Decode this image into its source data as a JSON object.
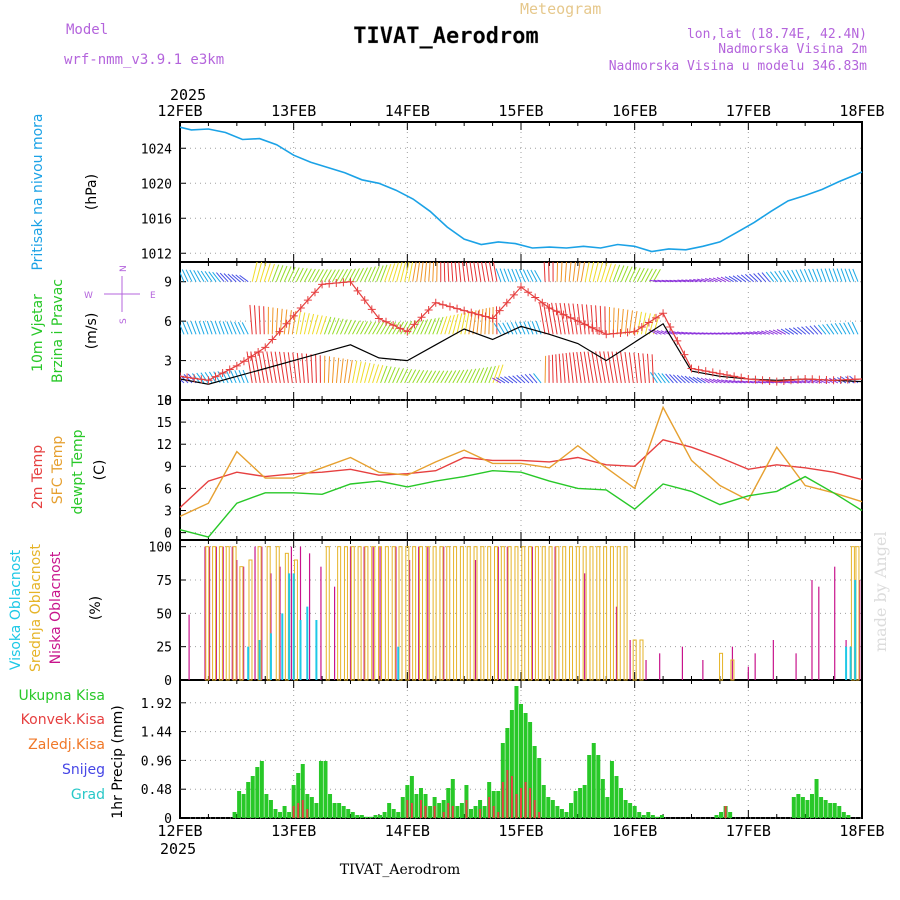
{
  "header": {
    "model_label": "Model",
    "model_name": "wrf-nmm_v3.9.1 e3km",
    "meteogram_label": "Meteogram",
    "station": "TIVAT_Aerodrom",
    "lonlat": "lon,lat (18.74E, 42.4N)",
    "elevation": "Nadmorska Visina 2m",
    "model_elevation": "Nadmorska Visina u modelu 346.83m",
    "footer_station": "TIVAT_Aerodrom",
    "watermark": "made by Angel"
  },
  "colors": {
    "pressure": "#1ba2e6",
    "temp2m": "#e64040",
    "sfc": "#e6a030",
    "dewpt": "#28c828",
    "high_cloud": "#1ec8e6",
    "mid_cloud": "#e6b428",
    "low_cloud": "#c8148c",
    "total_precip": "#28c828",
    "conv_precip": "#e64040",
    "frozen": "#f07828",
    "snow": "#4646e6",
    "hail": "#28c8c8",
    "wind_dir": "#b464dc"
  },
  "time_axis": {
    "year": "2025",
    "ticks": [
      "12FEB",
      "13FEB",
      "14FEB",
      "15FEB",
      "16FEB",
      "17FEB",
      "18FEB"
    ]
  },
  "chart_data": [
    {
      "type": "line",
      "id": "pressure",
      "title": "Pritisak na nivou mora",
      "ylabel": "(hPa)",
      "ylim": [
        1011,
        1027
      ],
      "yticks": [
        "1012",
        "1016",
        "1020",
        "1024"
      ],
      "x": [
        0,
        0.1,
        0.25,
        0.4,
        0.55,
        0.7,
        0.85,
        1.0,
        1.15,
        1.3,
        1.45,
        1.6,
        1.75,
        1.9,
        2.05,
        2.2,
        2.35,
        2.5,
        2.65,
        2.8,
        2.95,
        3.1,
        3.25,
        3.4,
        3.55,
        3.7,
        3.85,
        4.0,
        4.15,
        4.3,
        4.45,
        4.6,
        4.75,
        4.9,
        5.05,
        5.2,
        5.35,
        5.5,
        5.65,
        5.8,
        5.95,
        6.0
      ],
      "series": [
        {
          "name": "Pressure",
          "values": [
            1026.4,
            1026.1,
            1026.2,
            1025.8,
            1025.0,
            1025.1,
            1024.4,
            1023.2,
            1022.4,
            1021.8,
            1021.2,
            1020.4,
            1020.0,
            1019.2,
            1018.2,
            1016.8,
            1015.0,
            1013.6,
            1013.0,
            1013.3,
            1013.1,
            1012.6,
            1012.7,
            1012.6,
            1012.8,
            1012.6,
            1013.0,
            1012.8,
            1012.2,
            1012.5,
            1012.4,
            1012.8,
            1013.3,
            1014.4,
            1015.5,
            1016.8,
            1018.0,
            1018.6,
            1019.3,
            1020.2,
            1021.0,
            1021.3
          ]
        }
      ]
    },
    {
      "type": "line",
      "id": "wind",
      "title": "10m Vjetar",
      "title2": "Brzina i Pravac",
      "ylabel": "(m/s)",
      "ylim": [
        0,
        10.5
      ],
      "yticks": [
        "0",
        "3",
        "6",
        "9"
      ],
      "compass": {
        "n": "N",
        "s": "S",
        "e": "E",
        "w": "W"
      },
      "x": [
        0,
        0.25,
        0.5,
        0.75,
        1.0,
        1.25,
        1.5,
        1.75,
        2.0,
        2.25,
        2.5,
        2.75,
        3.0,
        3.25,
        3.5,
        3.75,
        4.0,
        4.25,
        4.5,
        4.75,
        5.0,
        5.25,
        5.5,
        5.75,
        6.0
      ],
      "series": [
        {
          "name": "Speed (mean)",
          "values": [
            1.6,
            1.2,
            1.8,
            2.4,
            3.0,
            3.6,
            4.2,
            3.2,
            3.0,
            4.2,
            5.4,
            4.6,
            5.6,
            5.0,
            4.3,
            3.0,
            4.4,
            5.8,
            2.2,
            1.8,
            1.6,
            1.5,
            1.6,
            1.5,
            1.4
          ]
        },
        {
          "name": "Gust",
          "values": [
            1.8,
            1.5,
            2.6,
            4.0,
            6.4,
            8.8,
            9.0,
            6.2,
            5.2,
            7.4,
            6.8,
            6.2,
            8.6,
            7.0,
            6.0,
            5.0,
            5.2,
            6.6,
            2.4,
            2.0,
            1.6,
            1.4,
            1.6,
            1.5,
            1.6
          ]
        }
      ]
    },
    {
      "type": "line",
      "id": "temperature",
      "title": "2m Temp",
      "title2": "SFC Temp",
      "title3": "dewpt Temp",
      "ylabel": "(C)",
      "ylim": [
        -1,
        18
      ],
      "yticks": [
        "0",
        "3",
        "6",
        "9",
        "12",
        "15",
        "18"
      ],
      "x": [
        0,
        0.25,
        0.5,
        0.75,
        1.0,
        1.25,
        1.5,
        1.75,
        2.0,
        2.25,
        2.5,
        2.75,
        3.0,
        3.25,
        3.5,
        3.75,
        4.0,
        4.25,
        4.5,
        4.75,
        5.0,
        5.25,
        5.5,
        5.75,
        6.0
      ],
      "series": [
        {
          "name": "2m Temp",
          "values": [
            3.4,
            7.0,
            8.2,
            7.6,
            8.0,
            8.2,
            8.6,
            7.8,
            8.0,
            8.4,
            10.2,
            9.8,
            9.8,
            9.6,
            10.2,
            9.2,
            9.0,
            12.6,
            11.6,
            10.2,
            8.6,
            9.2,
            8.8,
            8.2,
            7.2
          ]
        },
        {
          "name": "SFC Temp",
          "values": [
            2.2,
            4.0,
            11.0,
            7.4,
            7.4,
            8.8,
            10.2,
            8.2,
            7.8,
            9.6,
            11.2,
            9.4,
            9.4,
            8.8,
            11.8,
            8.8,
            6.0,
            17.0,
            9.8,
            6.4,
            4.4,
            11.6,
            6.4,
            5.4,
            4.2
          ]
        },
        {
          "name": "Dewpt Temp",
          "values": [
            0.4,
            -0.6,
            4.0,
            5.4,
            5.4,
            5.2,
            6.6,
            7.0,
            6.2,
            7.0,
            7.6,
            8.4,
            8.2,
            7.0,
            6.0,
            5.8,
            3.2,
            6.6,
            5.6,
            3.8,
            5.0,
            5.6,
            7.6,
            5.4,
            3.0
          ]
        }
      ]
    },
    {
      "type": "bar",
      "id": "clouds",
      "title": "Visoka Oblacnost",
      "title2": "Srednja Oblacnost",
      "title3": "Niska Oblacnost",
      "ylabel": "(%)",
      "ylim": [
        0,
        105
      ],
      "yticks": [
        "0",
        "25",
        "50",
        "75",
        "100"
      ],
      "series": [
        {
          "name": "Niska",
          "x": [
            0.08,
            0.22,
            0.26,
            0.32,
            0.38,
            0.46,
            0.5,
            0.56,
            0.66,
            0.72,
            0.8,
            0.88,
            0.98,
            1.06,
            1.14,
            1.24,
            1.36,
            1.5,
            1.62,
            1.7,
            1.76,
            1.9,
            2.02,
            2.1,
            2.18,
            2.32,
            2.6,
            2.8,
            2.88,
            3.1,
            3.3,
            3.56,
            3.84,
            3.96,
            4.1,
            4.22,
            4.42,
            4.6,
            4.86,
            5.0,
            5.06,
            5.22,
            5.42,
            5.56,
            5.62,
            5.76,
            5.86,
            5.98
          ],
          "values": [
            49,
            100,
            100,
            100,
            100,
            100,
            90,
            85,
            100,
            100,
            80,
            85,
            100,
            100,
            95,
            85,
            70,
            100,
            100,
            100,
            100,
            100,
            90,
            100,
            100,
            100,
            90,
            100,
            100,
            100,
            100,
            80,
            55,
            30,
            15,
            20,
            25,
            15,
            25,
            10,
            20,
            30,
            20,
            75,
            70,
            85,
            30,
            75
          ]
        },
        {
          "name": "Srednja",
          "x": [
            0.24,
            0.3,
            0.36,
            0.42,
            0.48,
            0.54,
            0.62,
            0.7,
            0.78,
            0.86,
            0.94,
            1.02,
            1.3,
            1.4,
            1.46,
            1.52,
            1.58,
            1.64,
            1.7,
            1.76,
            1.82,
            1.88,
            1.94,
            2.0,
            2.06,
            2.12,
            2.18,
            2.24,
            2.3,
            2.36,
            2.42,
            2.48,
            2.54,
            2.6,
            2.66,
            2.72,
            2.78,
            2.84,
            2.9,
            2.96,
            3.02,
            3.08,
            3.14,
            3.2,
            3.26,
            3.32,
            3.38,
            3.44,
            3.5,
            3.56,
            3.62,
            3.68,
            3.74,
            3.8,
            3.86,
            3.92,
            4.0,
            4.06,
            4.76,
            4.86,
            5.92,
            5.96
          ],
          "values": [
            100,
            100,
            100,
            100,
            100,
            85,
            90,
            100,
            100,
            100,
            95,
            90,
            100,
            100,
            100,
            100,
            100,
            100,
            100,
            100,
            100,
            100,
            100,
            100,
            100,
            100,
            100,
            100,
            100,
            100,
            100,
            100,
            100,
            100,
            100,
            100,
            100,
            100,
            100,
            100,
            100,
            100,
            100,
            100,
            100,
            100,
            100,
            100,
            100,
            100,
            100,
            100,
            100,
            100,
            100,
            100,
            30,
            30,
            20,
            15,
            100,
            100
          ]
        },
        {
          "name": "Visoka",
          "x": [
            0.6,
            0.7,
            0.8,
            0.9,
            0.96,
            1.0,
            1.06,
            1.12,
            1.2,
            1.92,
            5.86,
            5.9,
            5.94
          ],
          "values": [
            25,
            30,
            35,
            50,
            80,
            80,
            45,
            55,
            45,
            25,
            25,
            25,
            75
          ]
        }
      ]
    },
    {
      "type": "bar",
      "id": "precip",
      "title": "Ukupna Kisa",
      "title2": "Konvek.Kisa",
      "title3": "Zaledj.Kisa",
      "title4": "Snijeg",
      "title5": "Grad",
      "ylabel": "1hr Precip (mm)",
      "ylim": [
        0,
        2.3
      ],
      "yticks": [
        "0",
        "0.48",
        "0.96",
        "1.44",
        "1.92"
      ],
      "x": [
        0.48,
        0.52,
        0.56,
        0.6,
        0.64,
        0.68,
        0.72,
        0.76,
        0.8,
        0.84,
        0.88,
        0.92,
        0.96,
        1.0,
        1.04,
        1.08,
        1.12,
        1.16,
        1.2,
        1.24,
        1.28,
        1.32,
        1.36,
        1.4,
        1.44,
        1.48,
        1.52,
        1.56,
        1.6,
        1.64,
        1.68,
        1.72,
        1.76,
        1.8,
        1.84,
        1.88,
        1.92,
        1.96,
        2.0,
        2.04,
        2.08,
        2.12,
        2.16,
        2.2,
        2.24,
        2.28,
        2.32,
        2.36,
        2.4,
        2.44,
        2.48,
        2.52,
        2.56,
        2.6,
        2.64,
        2.68,
        2.72,
        2.76,
        2.8,
        2.84,
        2.88,
        2.92,
        2.96,
        3.0,
        3.04,
        3.08,
        3.12,
        3.16,
        3.2,
        3.24,
        3.28,
        3.32,
        3.36,
        3.4,
        3.44,
        3.48,
        3.52,
        3.56,
        3.6,
        3.64,
        3.68,
        3.72,
        3.76,
        3.8,
        3.84,
        3.88,
        3.92,
        3.96,
        4.0,
        4.04,
        4.08,
        4.12,
        4.16,
        4.2,
        4.24,
        4.72,
        4.76,
        4.8,
        4.84,
        5.4,
        5.44,
        5.48,
        5.52,
        5.56,
        5.6,
        5.64,
        5.68,
        5.72,
        5.76,
        5.8,
        5.84,
        5.88
      ],
      "series": [
        {
          "name": "Ukupna",
          "values": [
            0.1,
            0.45,
            0.4,
            0.6,
            0.7,
            0.85,
            0.95,
            0.4,
            0.3,
            0.15,
            0.1,
            0.2,
            0.1,
            0.55,
            0.75,
            0.9,
            0.4,
            0.35,
            0.25,
            0.95,
            0.95,
            0.4,
            0.25,
            0.25,
            0.2,
            0.15,
            0.1,
            0.05,
            0.05,
            0.02,
            0.02,
            0.05,
            0.05,
            0.1,
            0.25,
            0.15,
            0.1,
            0.35,
            0.55,
            0.7,
            0.4,
            0.5,
            0.4,
            0.2,
            0.35,
            0.25,
            0.3,
            0.5,
            0.65,
            0.2,
            0.25,
            0.55,
            0.15,
            0.2,
            0.3,
            0.2,
            0.6,
            0.45,
            0.45,
            1.25,
            1.5,
            1.8,
            2.2,
            1.9,
            1.75,
            1.6,
            1.2,
            1.0,
            0.55,
            0.35,
            0.3,
            0.2,
            0.15,
            0.1,
            0.25,
            0.45,
            0.5,
            0.55,
            1.05,
            1.25,
            1.05,
            0.65,
            0.35,
            0.95,
            0.7,
            0.5,
            0.3,
            0.25,
            0.2,
            0.1,
            0.05,
            0.1,
            0.05,
            0.02,
            0.05,
            0.05,
            0.1,
            0.2,
            0.1,
            0.35,
            0.4,
            0.35,
            0.3,
            0.4,
            0.65,
            0.35,
            0.3,
            0.25,
            0.25,
            0.2,
            0.1,
            0.05
          ]
        },
        {
          "name": "Konvek",
          "values": [
            0,
            0,
            0,
            0,
            0,
            0,
            0,
            0,
            0,
            0,
            0,
            0,
            0,
            0.2,
            0.25,
            0.3,
            0.15,
            0,
            0,
            0,
            0,
            0,
            0,
            0,
            0,
            0,
            0,
            0,
            0,
            0,
            0,
            0,
            0,
            0,
            0,
            0,
            0,
            0,
            0.3,
            0.25,
            0,
            0.3,
            0.2,
            0,
            0.2,
            0,
            0.1,
            0.25,
            0.2,
            0,
            0,
            0.3,
            0,
            0,
            0.15,
            0,
            0.35,
            0.2,
            0.1,
            0.6,
            0.8,
            0.7,
            0.4,
            0.5,
            0.6,
            0.5,
            0.3,
            0.1,
            0,
            0,
            0,
            0,
            0,
            0,
            0,
            0,
            0,
            0,
            0,
            0,
            0,
            0,
            0,
            0,
            0,
            0,
            0,
            0,
            0,
            0,
            0,
            0,
            0,
            0,
            0,
            0,
            0,
            0.2,
            0,
            0,
            0,
            0,
            0,
            0,
            0,
            0,
            0,
            0,
            0,
            0,
            0,
            0
          ]
        }
      ]
    }
  ]
}
